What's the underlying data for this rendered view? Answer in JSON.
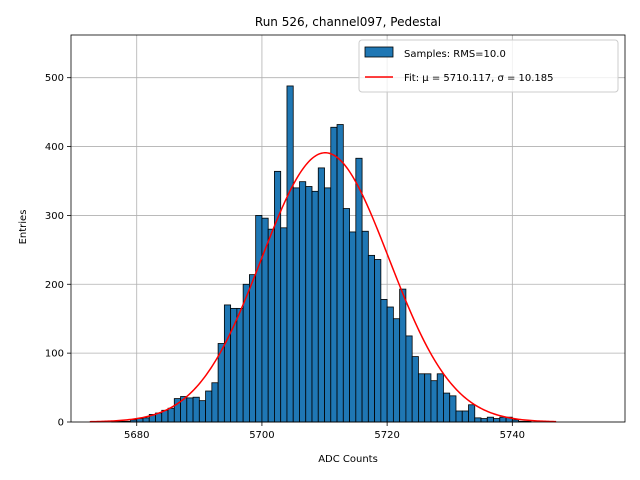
{
  "chart_data": {
    "type": "bar",
    "title": "Run 526, channel097, Pedestal",
    "xlabel": "ADC Counts",
    "ylabel": "Entries",
    "xlim": [
      5669.5,
      5758
    ],
    "ylim": [
      0,
      562
    ],
    "grid": true,
    "xticks": [
      5680,
      5700,
      5720,
      5740
    ],
    "yticks": [
      0,
      100,
      200,
      300,
      400,
      500
    ],
    "bin_width": 1,
    "bar_color": "#1f77b4",
    "fit_color": "#ff0000",
    "legend": {
      "placement": "upper-right",
      "entries": [
        {
          "label": "Samples: RMS=10.0",
          "kind": "patch",
          "color": "#1f77b4"
        },
        {
          "label": "Fit: μ = 5710.117, σ = 10.185",
          "kind": "line",
          "color": "#ff0000"
        }
      ]
    },
    "series": [
      {
        "name": "Samples: RMS=10.0",
        "bin_starts": [
          5676,
          5677,
          5678,
          5679,
          5680,
          5681,
          5682,
          5683,
          5684,
          5685,
          5686,
          5687,
          5688,
          5689,
          5690,
          5691,
          5692,
          5693,
          5694,
          5695,
          5696,
          5697,
          5698,
          5699,
          5700,
          5701,
          5702,
          5703,
          5704,
          5705,
          5706,
          5707,
          5708,
          5709,
          5710,
          5711,
          5712,
          5713,
          5714,
          5715,
          5716,
          5717,
          5718,
          5719,
          5720,
          5721,
          5722,
          5723,
          5724,
          5725,
          5726,
          5727,
          5728,
          5729,
          5730,
          5731,
          5732,
          5733,
          5734,
          5735,
          5736,
          5737,
          5738,
          5739,
          5740,
          5741,
          5742,
          5743,
          5744,
          5745,
          5746
        ],
        "values": [
          1,
          1,
          1,
          3,
          5,
          6,
          11,
          13,
          17,
          20,
          34,
          37,
          35,
          36,
          31,
          45,
          57,
          114,
          170,
          165,
          165,
          200,
          214,
          300,
          296,
          280,
          364,
          282,
          488,
          340,
          349,
          342,
          335,
          369,
          340,
          428,
          432,
          310,
          276,
          383,
          277,
          242,
          236,
          178,
          167,
          150,
          193,
          125,
          95,
          70,
          70,
          60,
          70,
          42,
          38,
          16,
          16,
          25,
          6,
          5,
          7,
          5,
          7,
          7,
          3,
          1,
          1,
          0,
          0,
          0,
          0
        ]
      },
      {
        "name": "Fit: μ = 5710.117, σ = 10.185",
        "type": "line",
        "model": "gaussian",
        "mu": 5710.117,
        "sigma": 10.185,
        "amplitude": 391,
        "x_range": [
          5672.5,
          5747
        ]
      }
    ]
  }
}
